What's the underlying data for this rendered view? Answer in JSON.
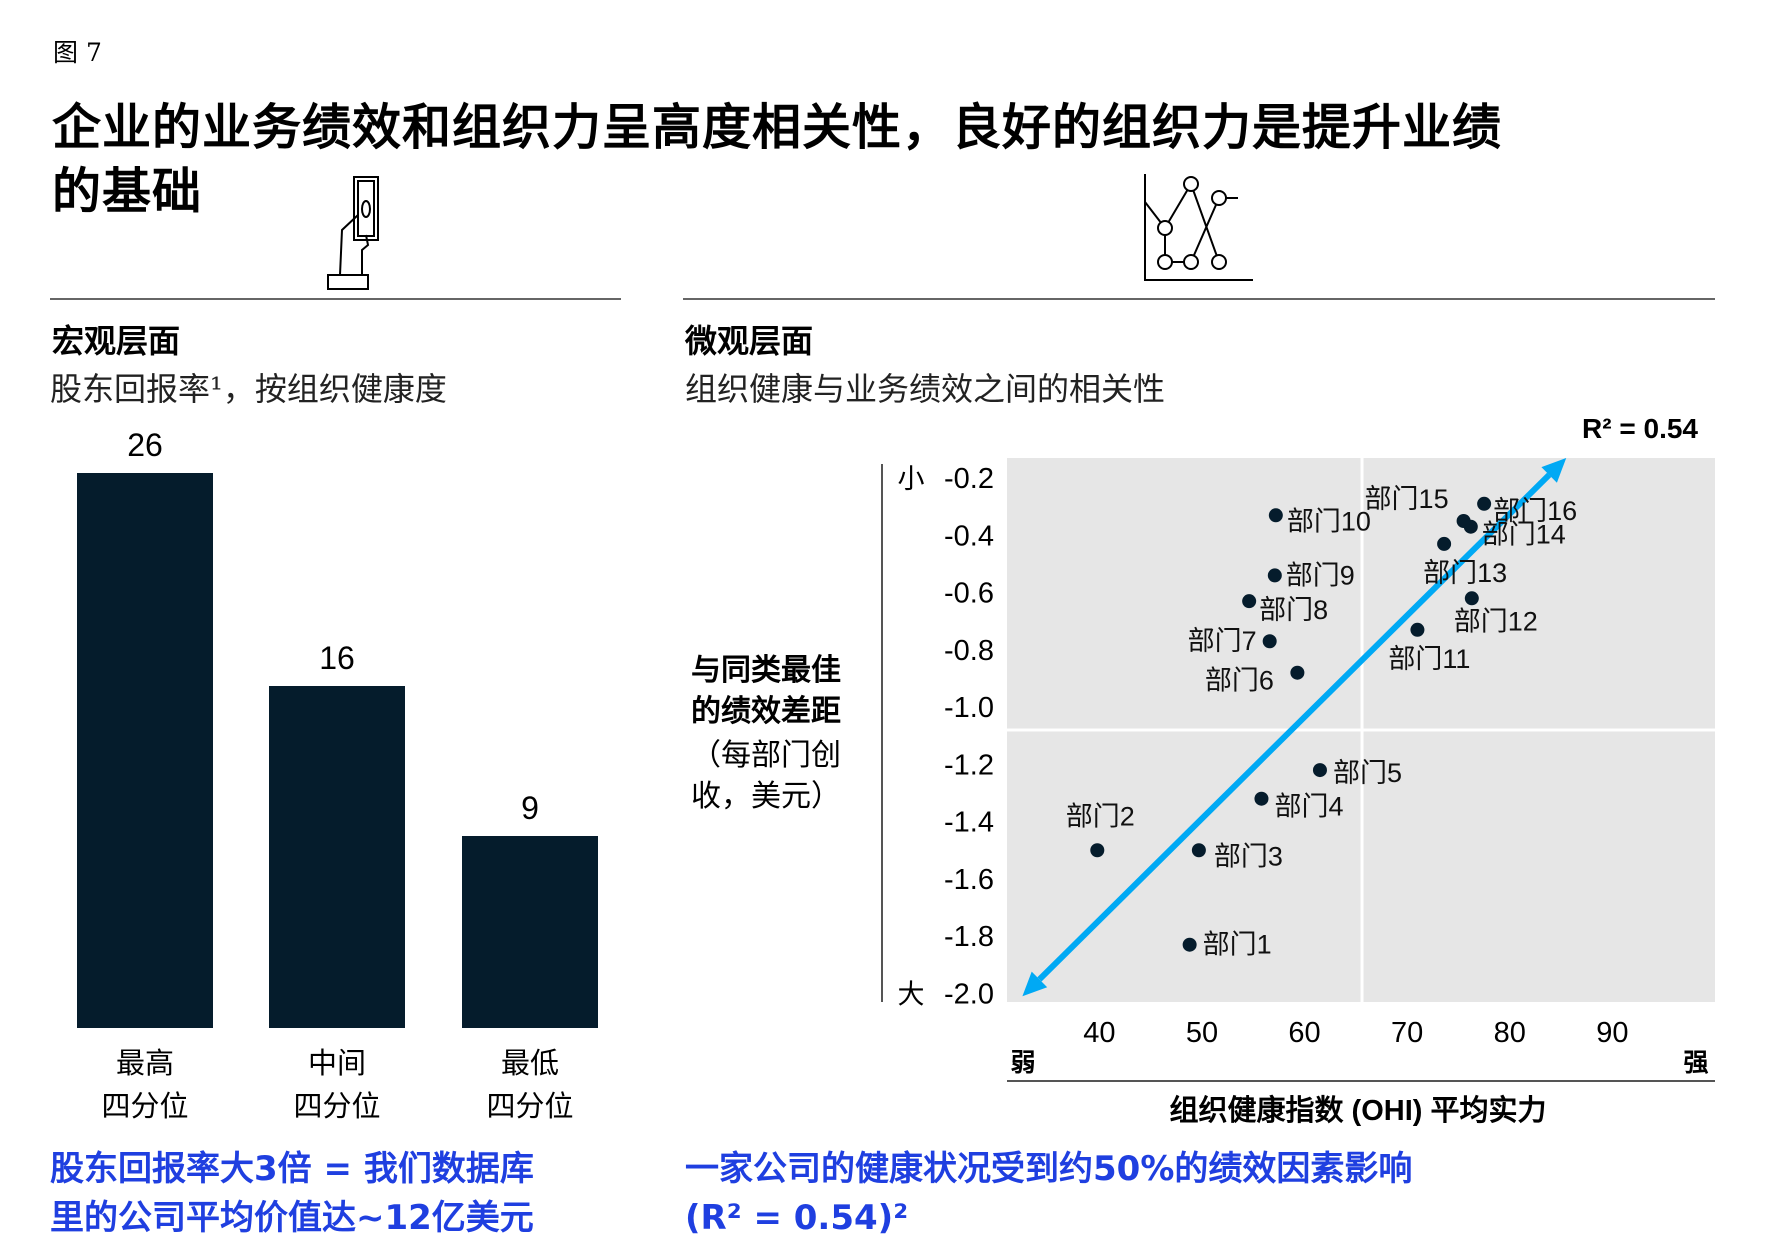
{
  "figure_label": "图 7",
  "title_line1": "企业的业务绩效和组织力呈高度相关性，良好的组织力是提升业绩",
  "title_line2": "的基础",
  "icons": {
    "left": "hand-holding-banknote-icon",
    "right": "line-scatter-chart-icon"
  },
  "left": {
    "heading": "宏观层面",
    "subtitle": "股东回报率¹，按组织健康度",
    "takeaway_line1": "股东回报率大3倍 = 我们数据库",
    "takeaway_line2": "里的公司平均价值达~12亿美元"
  },
  "right": {
    "heading": "微观层面",
    "subtitle": "组织健康与业务绩效之间的相关性",
    "takeaway_line1": "一家公司的健康状况受到约50%的绩效因素影响",
    "takeaway_line2": "(R² = 0.54)²"
  },
  "colors": {
    "bar": "#051c2c",
    "point": "#051c2c",
    "trend_arrow": "#00a9f4",
    "plot_bg": "#e6e6e6",
    "takeaway": "#1f3fe0"
  },
  "chart_data": [
    {
      "type": "bar",
      "categories": [
        "最高\n四分位",
        "中间\n四分位",
        "最低\n四分位"
      ],
      "category_lines": [
        [
          "最高",
          "四分位"
        ],
        [
          "中间",
          "四分位"
        ],
        [
          "最低",
          "四分位"
        ]
      ],
      "values": [
        26,
        16,
        9
      ],
      "value_labels": [
        "26",
        "16",
        "9"
      ],
      "ylim": [
        0,
        26
      ]
    },
    {
      "type": "scatter",
      "xlabel": "组织健康指数 (OHI) 平均实力",
      "ylabel_line1": "与同类最佳",
      "ylabel_line2": "的绩效差距",
      "ylabel_line3": "（每部门创",
      "ylabel_line4": "收，美元）",
      "x_low_label": "弱",
      "x_high_label": "强",
      "y_top_label": "小",
      "y_bottom_label": "大",
      "annotation": "R² = 0.54",
      "xlim": [
        31,
        100
      ],
      "ylim": [
        -2.03,
        -0.13
      ],
      "x_ticks": [
        40,
        50,
        60,
        70,
        80,
        90
      ],
      "y_ticks": [
        -0.2,
        -0.4,
        -0.6,
        -0.8,
        -1.0,
        -1.2,
        -1.4,
        -1.6,
        -1.8,
        -2.0
      ],
      "y_tick_labels": [
        "-0.2",
        "-0.4",
        "-0.6",
        "-0.8",
        "-1.0",
        "-1.2",
        "-1.4",
        "-1.6",
        "-1.8",
        "-2.0"
      ],
      "quadrant_divider": {
        "x": 65.6,
        "y": -1.08
      },
      "trend_arrow": {
        "from": [
          32.5,
          -2.01
        ],
        "to": [
          85.5,
          -0.13
        ],
        "double_headed": true
      },
      "points": [
        {
          "label": "部门1",
          "x": 48.8,
          "y": -1.83
        },
        {
          "label": "部门2",
          "x": 39.8,
          "y": -1.5
        },
        {
          "label": "部门3",
          "x": 49.7,
          "y": -1.5
        },
        {
          "label": "部门4",
          "x": 55.8,
          "y": -1.32
        },
        {
          "label": "部门5",
          "x": 61.5,
          "y": -1.22
        },
        {
          "label": "部门6",
          "x": 59.3,
          "y": -0.88
        },
        {
          "label": "部门7",
          "x": 56.6,
          "y": -0.77
        },
        {
          "label": "部门8",
          "x": 54.6,
          "y": -0.63
        },
        {
          "label": "部门9",
          "x": 57.1,
          "y": -0.54
        },
        {
          "label": "部门10",
          "x": 57.2,
          "y": -0.33
        },
        {
          "label": "部门11",
          "x": 71.0,
          "y": -0.73
        },
        {
          "label": "部门12",
          "x": 76.3,
          "y": -0.62
        },
        {
          "label": "部门13",
          "x": 73.6,
          "y": -0.43
        },
        {
          "label": "部门14",
          "x": 76.2,
          "y": -0.37
        },
        {
          "label": "部门15",
          "x": 75.5,
          "y": -0.35
        },
        {
          "label": "部门16",
          "x": 77.5,
          "y": -0.29
        }
      ]
    }
  ]
}
